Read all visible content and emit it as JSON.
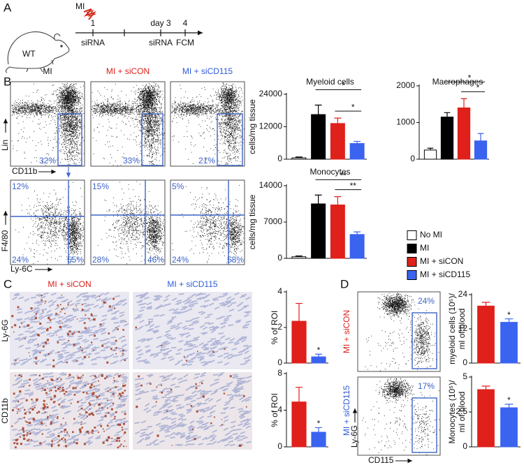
{
  "panels": {
    "A": {
      "letter": "A",
      "mouse": "WT",
      "injury": "MI",
      "timeline": {
        "ticks": [
          "1",
          "day 3",
          "4"
        ],
        "events": [
          "siRNA",
          "siRNA",
          "FCM"
        ]
      }
    },
    "B": {
      "letter": "B",
      "columns": [
        "MI",
        "MI + siCON",
        "MI + siCD115"
      ],
      "gate_plot": {
        "y_label": "Lin",
        "x_label": "CD11b",
        "percents": [
          "32%",
          "33%",
          "21%"
        ]
      },
      "quadrant_plot": {
        "y_label": "F4/80",
        "x_label": "Ly-6C",
        "percents": [
          [
            "12%",
            "24%",
            "55%"
          ],
          [
            "15%",
            "28%",
            "46%"
          ],
          [
            "5%",
            "24%",
            "58%"
          ]
        ]
      }
    },
    "C": {
      "letter": "C",
      "columns": [
        "MI + siCON",
        "MI + siCD115"
      ],
      "rows": [
        "Ly-6G",
        "CD11b"
      ]
    },
    "D": {
      "letter": "D",
      "rows": [
        "MI + siCON",
        "MI + siCD115"
      ],
      "y_label": "Ly-6G",
      "x_label": "CD115",
      "percents": [
        "24%",
        "17%"
      ]
    }
  },
  "legend": [
    {
      "name": "No MI",
      "color": "#ffffff"
    },
    {
      "name": "MI",
      "color": "#000000"
    },
    {
      "name": "MI + siCON",
      "color": "#e0201b"
    },
    {
      "name": "MI + siCD115",
      "color": "#3a63f0"
    }
  ],
  "chart_data": [
    {
      "type": "bar",
      "title": "Myeloid cells",
      "y_label": "cells/mg tissue",
      "values": [
        500,
        16500,
        13200,
        5800
      ],
      "errors": [
        300,
        3500,
        2000,
        800
      ],
      "colors": [
        "#ffffff",
        "#000000",
        "#e0201b",
        "#3a63f0"
      ],
      "ylim": [
        0,
        24000
      ],
      "yticks": [
        0,
        12000,
        24000
      ],
      "significance": [
        "*",
        "*"
      ]
    },
    {
      "type": "bar",
      "title": "Macrophages",
      "values": [
        250,
        1150,
        1400,
        500
      ],
      "errors": [
        50,
        120,
        250,
        200
      ],
      "colors": [
        "#ffffff",
        "#000000",
        "#e0201b",
        "#3a63f0"
      ],
      "ylim": [
        0,
        2000
      ],
      "yticks": [
        0,
        1000,
        2000
      ],
      "significance": [
        "*",
        "*"
      ]
    },
    {
      "type": "bar",
      "title": "Monocytes",
      "y_label": "cells/mg tissue",
      "values": [
        300,
        10500,
        10300,
        4600
      ],
      "errors": [
        150,
        1700,
        1600,
        500
      ],
      "colors": [
        "#ffffff",
        "#000000",
        "#e0201b",
        "#3a63f0"
      ],
      "ylim": [
        0,
        14000
      ],
      "yticks": [
        0,
        7000,
        14000
      ],
      "significance": [
        "**",
        "**"
      ]
    },
    {
      "type": "bar",
      "y_label": "% of ROI",
      "values": [
        2.35,
        0.35
      ],
      "errors": [
        1.0,
        0.15
      ],
      "colors": [
        "#e0201b",
        "#3a63f0"
      ],
      "ylim": [
        0,
        4
      ],
      "yticks": [
        0,
        2,
        4
      ],
      "significance": [
        "*"
      ]
    },
    {
      "type": "bar",
      "y_label": "% of ROI",
      "values": [
        4.9,
        1.6
      ],
      "errors": [
        1.6,
        0.5
      ],
      "colors": [
        "#e0201b",
        "#3a63f0"
      ],
      "ylim": [
        0,
        8
      ],
      "yticks": [
        0,
        4,
        8
      ],
      "significance": [
        "*"
      ]
    },
    {
      "type": "bar",
      "y_label": [
        "myeloid cells (10⁵)/",
        "ml of blood"
      ],
      "values": [
        20,
        14.3
      ],
      "errors": [
        1.3,
        1.2
      ],
      "colors": [
        "#e0201b",
        "#3a63f0"
      ],
      "ylim": [
        0,
        24
      ],
      "yticks": [
        0,
        12,
        24
      ],
      "significance": [
        "*"
      ]
    },
    {
      "type": "bar",
      "y_label": [
        "Monocytes (10⁵)/",
        "ml of blood"
      ],
      "values": [
        4.1,
        2.8
      ],
      "errors": [
        0.25,
        0.25
      ],
      "colors": [
        "#e0201b",
        "#3a63f0"
      ],
      "ylim": [
        0,
        5
      ],
      "yticks": [
        0,
        2.5,
        5
      ],
      "significance": [
        "*"
      ]
    }
  ]
}
